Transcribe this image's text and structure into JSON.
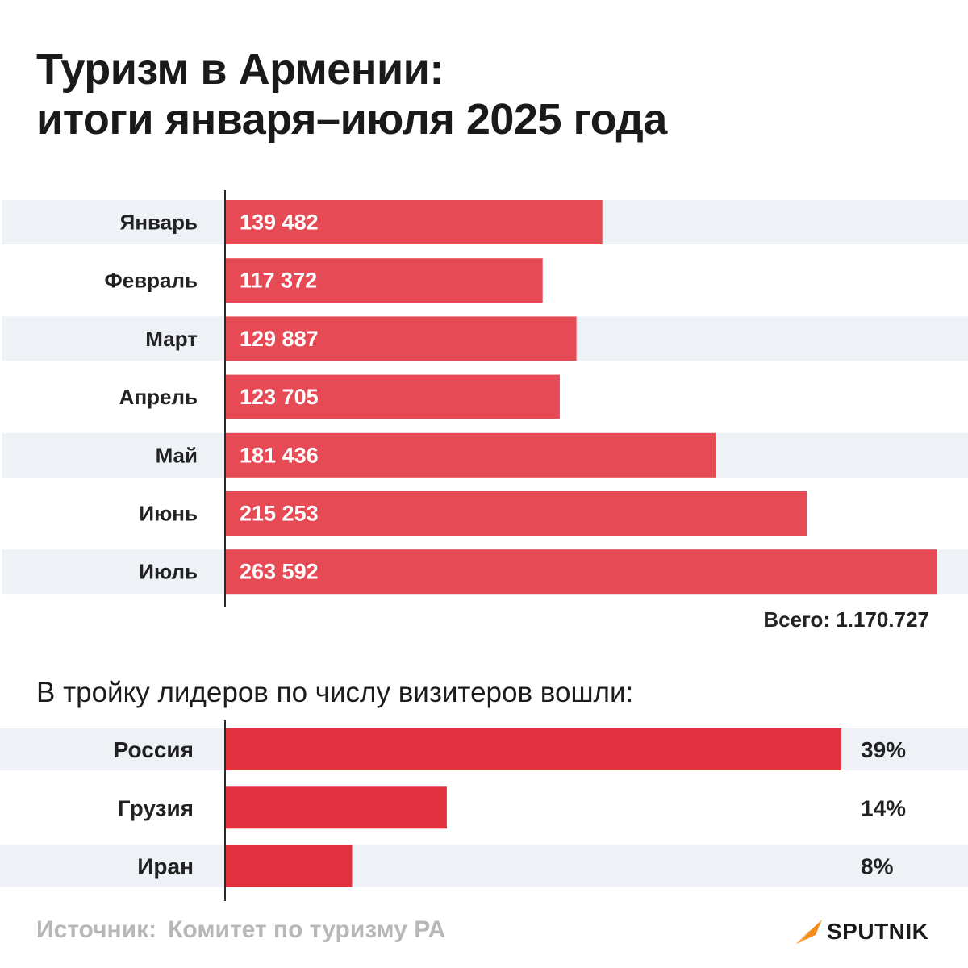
{
  "title_lines": [
    "Туризм в Армении:",
    "итоги января–июля 2025 года"
  ],
  "colors": {
    "bar": "#e64a55",
    "bar_strong": "#e3303e",
    "band": "#eef1f5",
    "axis": "#2a2a2a",
    "source": "#b7b7b7",
    "logo_mark": "#f48d1d"
  },
  "chart_data": [
    {
      "type": "bar",
      "orientation": "horizontal",
      "categories": [
        "Январь",
        "Февраль",
        "Март",
        "Апрель",
        "Май",
        "Июнь",
        "Июль"
      ],
      "values": [
        139482,
        117372,
        129887,
        123705,
        181436,
        215253,
        263592
      ],
      "value_labels": [
        "139 482",
        "117 372",
        "129 887",
        "123 705",
        "181 436",
        "215 253",
        "263 592"
      ],
      "total_label": "Всего:",
      "total_value": "1.170.727",
      "grid": false
    },
    {
      "type": "bar",
      "orientation": "horizontal",
      "title": "В тройку лидеров по числу визитеров вошли:",
      "categories": [
        "Россия",
        "Грузия",
        "Иран"
      ],
      "values": [
        39,
        14,
        8
      ],
      "value_labels": [
        "39%",
        "14%",
        "8%"
      ],
      "grid": false
    }
  ],
  "source": {
    "label": "Источник:",
    "text": "Комитет по туризму РА"
  },
  "logo": {
    "text": "SPUTNIK"
  }
}
